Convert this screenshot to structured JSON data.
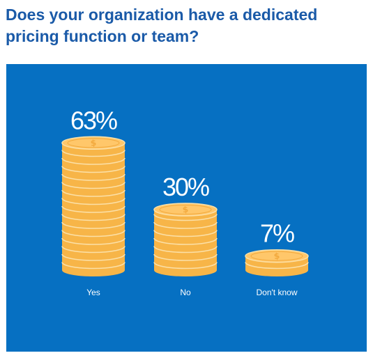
{
  "title": "Does your organization have a dedicated pricing function or team?",
  "colors": {
    "panel": "#0670c2",
    "coin_face": "#ffc76a",
    "coin_side": "#f7b548",
    "coin_rim": "#fbe0a8",
    "coin_symbol": "#f2a93d",
    "title": "#1a5aa8"
  },
  "coin_icon": "dollar-coin-icon",
  "chart_data": {
    "type": "bar",
    "categories": [
      "Yes",
      "No",
      "Don't know"
    ],
    "values": [
      63,
      30,
      7
    ],
    "value_labels": [
      "63%",
      "30%",
      "7%"
    ],
    "ylim": [
      0,
      100
    ],
    "title": "Does your organization have a dedicated pricing function or team?",
    "xlabel": "",
    "ylabel": "",
    "grid": false,
    "legend": "none"
  }
}
